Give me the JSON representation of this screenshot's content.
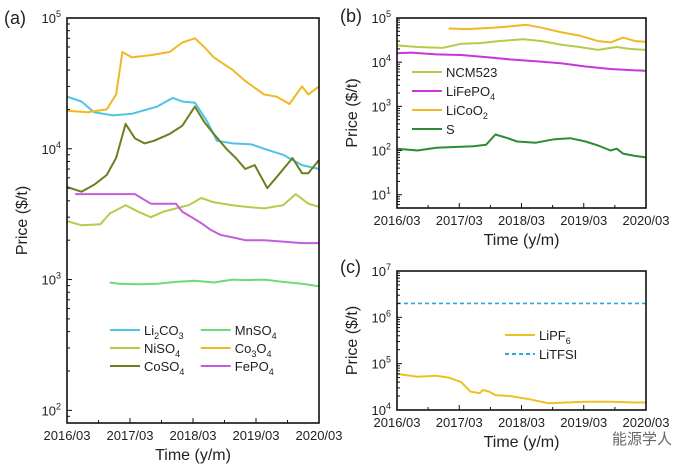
{
  "watermark": "能源学人",
  "chart_data": [
    {
      "panel": "(a)",
      "type": "line",
      "xlabel": "Time (y/m)",
      "ylabel": "Price ($/t)",
      "yscale": "log",
      "ylim": [
        80,
        100000
      ],
      "xlim": [
        2016.17,
        2020.17
      ],
      "xticks": [
        "2016/03",
        "2017/03",
        "2018/03",
        "2019/03",
        "2020/03"
      ],
      "yticks": [
        "10^2",
        "10^3",
        "10^4",
        "10^5"
      ],
      "legend": "bottom-center",
      "series": [
        {
          "name": "Li2CO3",
          "color": "#4ec3e6",
          "x": [
            2016.17,
            2016.4,
            2016.6,
            2016.9,
            2017.2,
            2017.6,
            2017.85,
            2018.0,
            2018.2,
            2018.4,
            2018.55,
            2018.8,
            2019.1,
            2019.3,
            2019.6,
            2019.9,
            2020.17
          ],
          "y": [
            25000,
            23000,
            19000,
            18000,
            18500,
            21000,
            24500,
            23000,
            22500,
            16000,
            11500,
            11000,
            10800,
            10000,
            9000,
            7500,
            7000
          ]
        },
        {
          "name": "NiSO4",
          "color": "#b5cc4a",
          "x": [
            2016.17,
            2016.4,
            2016.7,
            2016.85,
            2017.1,
            2017.3,
            2017.5,
            2017.7,
            2017.9,
            2018.1,
            2018.3,
            2018.5,
            2018.8,
            2019.0,
            2019.3,
            2019.6,
            2019.8,
            2020.0,
            2020.17
          ],
          "y": [
            2800,
            2600,
            2650,
            3200,
            3700,
            3300,
            3000,
            3300,
            3500,
            3700,
            4200,
            3900,
            3700,
            3600,
            3500,
            3700,
            4500,
            3800,
            3600
          ]
        },
        {
          "name": "CoSO4",
          "color": "#6b7f1e",
          "x": [
            2016.17,
            2016.4,
            2016.6,
            2016.8,
            2016.95,
            2017.1,
            2017.25,
            2017.4,
            2017.55,
            2017.8,
            2018.0,
            2018.2,
            2018.35,
            2018.5,
            2018.7,
            2018.85,
            2019.0,
            2019.15,
            2019.35,
            2019.55,
            2019.75,
            2019.9,
            2020.0,
            2020.17
          ],
          "y": [
            5100,
            4700,
            5300,
            6300,
            8500,
            15500,
            12000,
            11000,
            11500,
            13000,
            15000,
            21000,
            16000,
            13000,
            10000,
            8500,
            7000,
            7500,
            5000,
            6500,
            8500,
            6500,
            6500,
            8200
          ]
        },
        {
          "name": "MnSO4",
          "color": "#6bdc7a",
          "x": [
            2016.85,
            2017.0,
            2017.3,
            2017.6,
            2017.9,
            2018.2,
            2018.5,
            2018.8,
            2019.0,
            2019.3,
            2019.6,
            2019.9,
            2020.17
          ],
          "y": [
            950,
            930,
            920,
            930,
            960,
            980,
            950,
            1000,
            990,
            1000,
            960,
            930,
            890
          ]
        },
        {
          "name": "Co3O4",
          "color": "#f0b824",
          "x": [
            2016.17,
            2016.5,
            2016.8,
            2016.95,
            2017.05,
            2017.2,
            2017.5,
            2017.8,
            2018.0,
            2018.2,
            2018.35,
            2018.5,
            2018.8,
            2019.0,
            2019.3,
            2019.5,
            2019.7,
            2019.9,
            2020.0,
            2020.17
          ],
          "y": [
            19500,
            19000,
            20000,
            26000,
            55000,
            50000,
            52000,
            55000,
            65000,
            70000,
            60000,
            50000,
            40000,
            33000,
            26000,
            25000,
            22000,
            30000,
            26000,
            30000
          ]
        },
        {
          "name": "FePO4",
          "color": "#c35ddc",
          "x": [
            2016.3,
            2016.8,
            2017.0,
            2017.25,
            2017.5,
            2017.7,
            2017.9,
            2018.0,
            2018.15,
            2018.3,
            2018.45,
            2018.6,
            2018.8,
            2019.0,
            2019.3,
            2019.6,
            2019.9,
            2020.17
          ],
          "y": [
            4500,
            4500,
            4500,
            4500,
            3800,
            3800,
            3800,
            3300,
            3000,
            2700,
            2400,
            2200,
            2100,
            2000,
            2000,
            1950,
            1900,
            1900
          ]
        }
      ]
    },
    {
      "panel": "(b)",
      "type": "line",
      "xlabel": "Time (y/m)",
      "ylabel": "Price ($/t)",
      "yscale": "log",
      "ylim": [
        5,
        100000
      ],
      "xlim": [
        2016.17,
        2020.17
      ],
      "xticks": [
        "2016/03",
        "2017/03",
        "2018/03",
        "2019/03",
        "2020/03"
      ],
      "yticks": [
        "10^1",
        "10^2",
        "10^3",
        "10^4",
        "10^5"
      ],
      "legend": "center-left",
      "series": [
        {
          "name": "NCM523",
          "color": "#b5cc4a",
          "x": [
            2016.17,
            2016.5,
            2016.9,
            2017.2,
            2017.5,
            2017.8,
            2018.2,
            2018.5,
            2018.8,
            2019.1,
            2019.4,
            2019.7,
            2019.9,
            2020.17
          ],
          "y": [
            24000,
            22000,
            21000,
            26000,
            27000,
            30000,
            33000,
            30000,
            25000,
            22000,
            19000,
            22000,
            20000,
            19000
          ]
        },
        {
          "name": "LiFePO4",
          "color": "#c835d8",
          "x": [
            2016.17,
            2016.4,
            2016.8,
            2017.2,
            2017.6,
            2018.0,
            2018.4,
            2018.8,
            2019.2,
            2019.6,
            2020.0,
            2020.17
          ],
          "y": [
            16000,
            16500,
            15000,
            14500,
            13000,
            11500,
            10500,
            9500,
            8000,
            7000,
            6500,
            6400
          ]
        },
        {
          "name": "LiCoO2",
          "color": "#f0b824",
          "x": [
            2017.0,
            2017.3,
            2017.7,
            2018.0,
            2018.25,
            2018.5,
            2018.8,
            2019.1,
            2019.4,
            2019.6,
            2019.8,
            2020.0,
            2020.17
          ],
          "y": [
            58000,
            56000,
            60000,
            65000,
            70000,
            60000,
            48000,
            40000,
            30000,
            28000,
            36000,
            30000,
            29000
          ]
        },
        {
          "name": "S",
          "color": "#2e8b35",
          "x": [
            2016.17,
            2016.5,
            2016.8,
            2017.1,
            2017.4,
            2017.6,
            2017.75,
            2017.95,
            2018.1,
            2018.4,
            2018.7,
            2018.95,
            2019.2,
            2019.4,
            2019.6,
            2019.7,
            2019.8,
            2020.0,
            2020.17
          ],
          "y": [
            110,
            100,
            115,
            120,
            125,
            135,
            230,
            190,
            160,
            150,
            180,
            190,
            160,
            130,
            100,
            110,
            85,
            75,
            70
          ]
        }
      ]
    },
    {
      "panel": "(c)",
      "type": "line",
      "xlabel": "Time (y/m)",
      "ylabel": "Price ($/t)",
      "yscale": "log",
      "ylim": [
        10000,
        10000000
      ],
      "xlim": [
        2016.17,
        2020.17
      ],
      "xticks": [
        "2016/03",
        "2017/03",
        "2018/03",
        "2019/03",
        "2020/03"
      ],
      "yticks": [
        "10^4",
        "10^5",
        "10^6",
        "10^7"
      ],
      "legend": "center",
      "series": [
        {
          "name": "LiPF6",
          "color": "#f0c020",
          "dash": false,
          "x": [
            2016.17,
            2016.5,
            2016.8,
            2017.0,
            2017.2,
            2017.35,
            2017.5,
            2017.55,
            2017.65,
            2017.75,
            2018.0,
            2018.3,
            2018.6,
            2018.9,
            2019.2,
            2019.6,
            2020.0,
            2020.17
          ],
          "y": [
            60000,
            52000,
            55000,
            50000,
            40000,
            25000,
            23000,
            27000,
            25000,
            21000,
            20000,
            17000,
            14000,
            14500,
            15000,
            15000,
            14500,
            14500
          ]
        },
        {
          "name": "LiTFSI",
          "color": "#29a9d9",
          "dash": true,
          "x": [
            2016.17,
            2020.17
          ],
          "y": [
            2000000,
            2000000
          ]
        }
      ]
    }
  ]
}
